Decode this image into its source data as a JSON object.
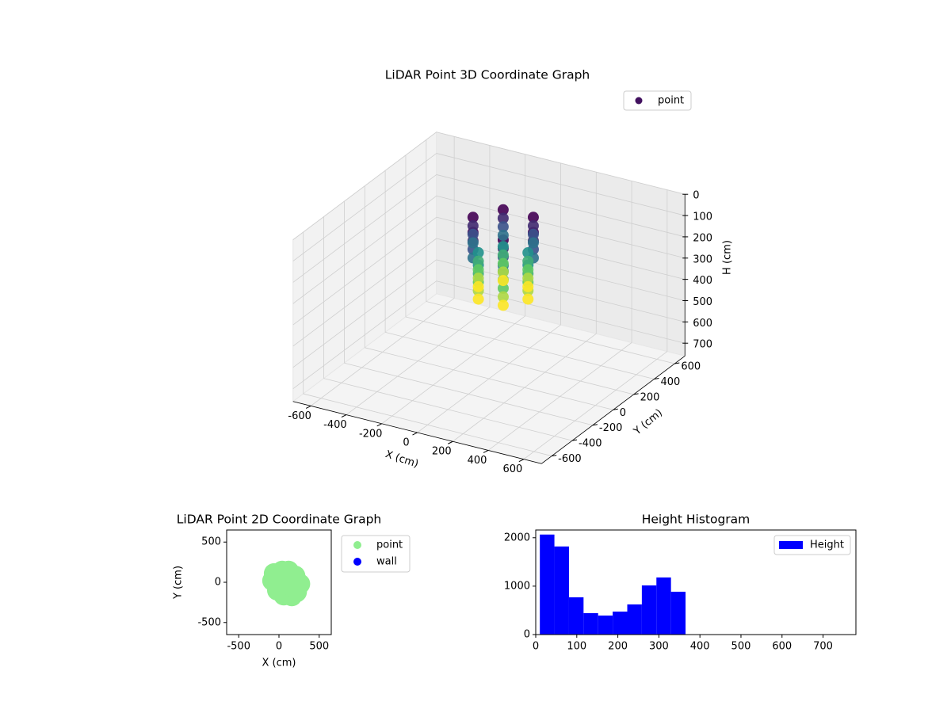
{
  "chart_data": [
    {
      "type": "scatter3d",
      "title": "LiDAR Point 3D Coordinate Graph",
      "xlabel": "X (cm)",
      "ylabel": "Y (cm)",
      "zlabel": "H (cm)",
      "xlim": [
        -700,
        700
      ],
      "ylim": [
        -700,
        700
      ],
      "zlim": [
        0,
        760
      ],
      "zinvert": true,
      "xticks": [
        -600,
        -400,
        -200,
        0,
        200,
        400,
        600
      ],
      "yticks": [
        -600,
        -400,
        -200,
        0,
        200,
        400,
        600
      ],
      "zticks": [
        0,
        100,
        200,
        300,
        400,
        500,
        600,
        700
      ],
      "legend": "upper right",
      "series": [
        {
          "name": "point",
          "colormap": "viridis",
          "x": [
            250,
            165,
            -5,
            -90,
            -5,
            165,
            250,
            165,
            -5,
            -90,
            -5,
            165,
            250,
            165,
            -5,
            -90,
            -5,
            165,
            250,
            165,
            -5,
            -90,
            -5,
            165,
            220,
            150,
            10,
            -60,
            10,
            150,
            220,
            150,
            10,
            -60,
            10,
            150,
            220,
            150,
            10,
            -60,
            10,
            150,
            220,
            150,
            10,
            -60,
            10,
            150,
            220,
            150,
            10,
            -60,
            10,
            150
          ],
          "y": [
            0,
            147,
            147,
            0,
            -147,
            -147,
            0,
            147,
            147,
            0,
            -147,
            -147,
            0,
            147,
            147,
            0,
            -147,
            -147,
            0,
            147,
            147,
            0,
            -147,
            -147,
            0,
            121,
            121,
            0,
            -121,
            -121,
            0,
            121,
            121,
            0,
            -121,
            -121,
            0,
            121,
            121,
            0,
            -121,
            -121,
            0,
            121,
            121,
            0,
            -121,
            -121,
            0,
            121,
            121,
            0,
            -121,
            -121
          ],
          "z": [
            20,
            20,
            20,
            20,
            20,
            20,
            60,
            60,
            60,
            60,
            60,
            60,
            100,
            100,
            100,
            100,
            100,
            100,
            140,
            140,
            140,
            140,
            140,
            140,
            180,
            180,
            180,
            180,
            180,
            180,
            220,
            220,
            220,
            220,
            220,
            220,
            260,
            260,
            260,
            260,
            260,
            260,
            300,
            300,
            300,
            300,
            300,
            300,
            340,
            340,
            340,
            340,
            340,
            340
          ]
        }
      ]
    },
    {
      "type": "scatter",
      "title": "LiDAR Point 2D Coordinate Graph",
      "xlabel": "X (cm)",
      "ylabel": "Y (cm)",
      "xlim": [
        -650,
        650
      ],
      "ylim": [
        -650,
        650
      ],
      "xticks": [
        -500,
        0,
        500
      ],
      "yticks": [
        -500,
        0,
        500
      ],
      "legend": "outside right",
      "series": [
        {
          "name": "point",
          "color": "#90ee90",
          "x": [
            100,
            20,
            -60,
            -80,
            -20,
            60,
            160,
            220,
            260,
            200,
            120,
            40,
            100,
            0,
            170,
            -40
          ],
          "y": [
            -20,
            120,
            110,
            20,
            -100,
            -160,
            -170,
            -120,
            -20,
            80,
            140,
            140,
            40,
            -50,
            -60,
            40
          ]
        },
        {
          "name": "wall",
          "color": "#0000ff",
          "x": [],
          "y": []
        }
      ]
    },
    {
      "type": "histogram",
      "title": "Height Histogram",
      "name": "Height",
      "color": "#0000ff",
      "bins": [
        10,
        45.5,
        81,
        116.5,
        152,
        187.5,
        223,
        258.5,
        294,
        329.5,
        365
      ],
      "values": [
        2066,
        1820,
        770,
        443,
        393,
        475,
        623,
        1016,
        1180,
        885
      ],
      "xlim": [
        0,
        780
      ],
      "ylim": [
        0,
        2160
      ],
      "xticks": [
        0,
        100,
        200,
        300,
        400,
        500,
        600,
        700
      ],
      "yticks": [
        0,
        1000,
        2000
      ],
      "legend": "upper right"
    }
  ]
}
